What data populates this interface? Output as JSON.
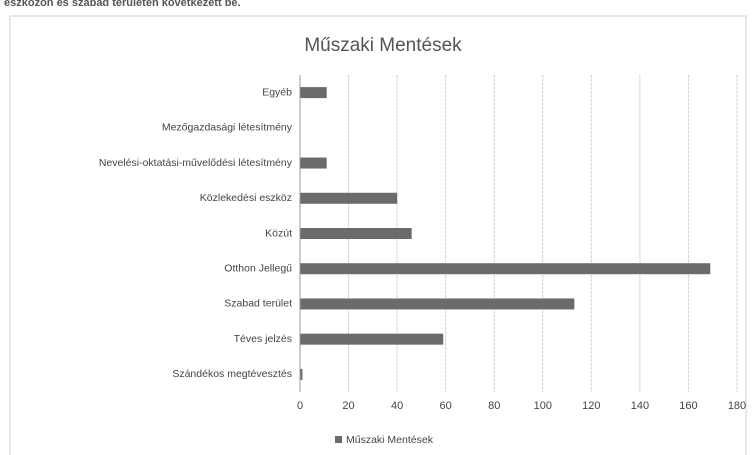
{
  "chart_data": {
    "type": "bar",
    "orientation": "horizontal",
    "heading_fragment": "eszközön és szabad területen következett be.",
    "title": "Műszaki Mentések",
    "categories": [
      "Egyéb",
      "Mezőgazdasági létesítmény",
      "Nevelési-oktatási-művelődési létesítmény",
      "Közlekedési eszköz",
      "Közút",
      "Otthon Jellegű",
      "Szabad terület",
      "Téves jelzés",
      "Szándékos megtévesztés"
    ],
    "series": [
      {
        "name": "Műszaki Mentések",
        "color": "#6b6b6b",
        "values": [
          11,
          0,
          11,
          40,
          46,
          169,
          113,
          59,
          1
        ]
      }
    ],
    "xlim": [
      0,
      180
    ],
    "xticks": [
      0,
      20,
      40,
      60,
      80,
      100,
      120,
      140,
      160,
      180
    ],
    "grid": true,
    "legend": "bottom"
  }
}
